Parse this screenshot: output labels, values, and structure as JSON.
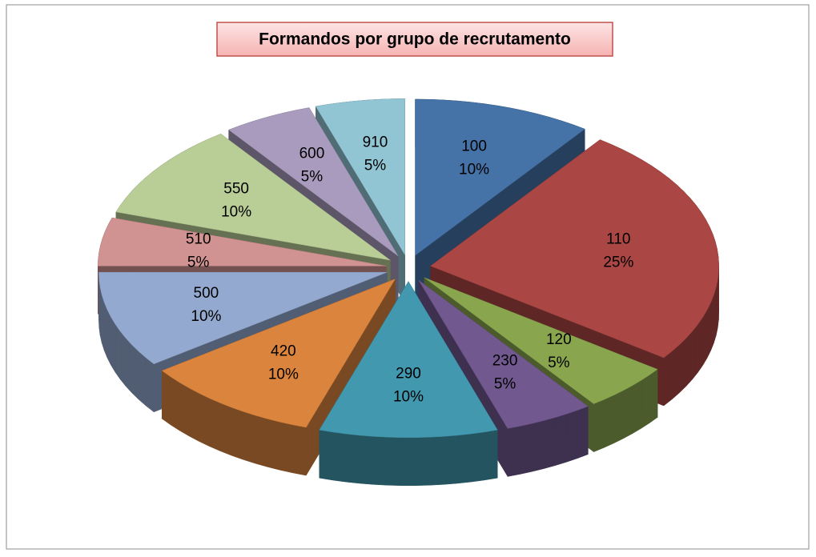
{
  "chart_data": {
    "type": "pie",
    "title": "Formandos por grupo de recrutamento",
    "categories": [
      "100",
      "110",
      "120",
      "230",
      "290",
      "420",
      "500",
      "510",
      "550",
      "600",
      "910"
    ],
    "values": [
      10,
      25,
      5,
      5,
      10,
      10,
      10,
      5,
      10,
      5,
      5
    ],
    "value_labels": [
      "10%",
      "25%",
      "5%",
      "5%",
      "10%",
      "10%",
      "10%",
      "5%",
      "10%",
      "5%",
      "5%"
    ],
    "colors": [
      "#4572a7",
      "#aa4643",
      "#89a54e",
      "#71588f",
      "#4198af",
      "#db843d",
      "#93a9cf",
      "#d19392",
      "#b9cd96",
      "#a99bbd",
      "#92c5d4"
    ]
  }
}
